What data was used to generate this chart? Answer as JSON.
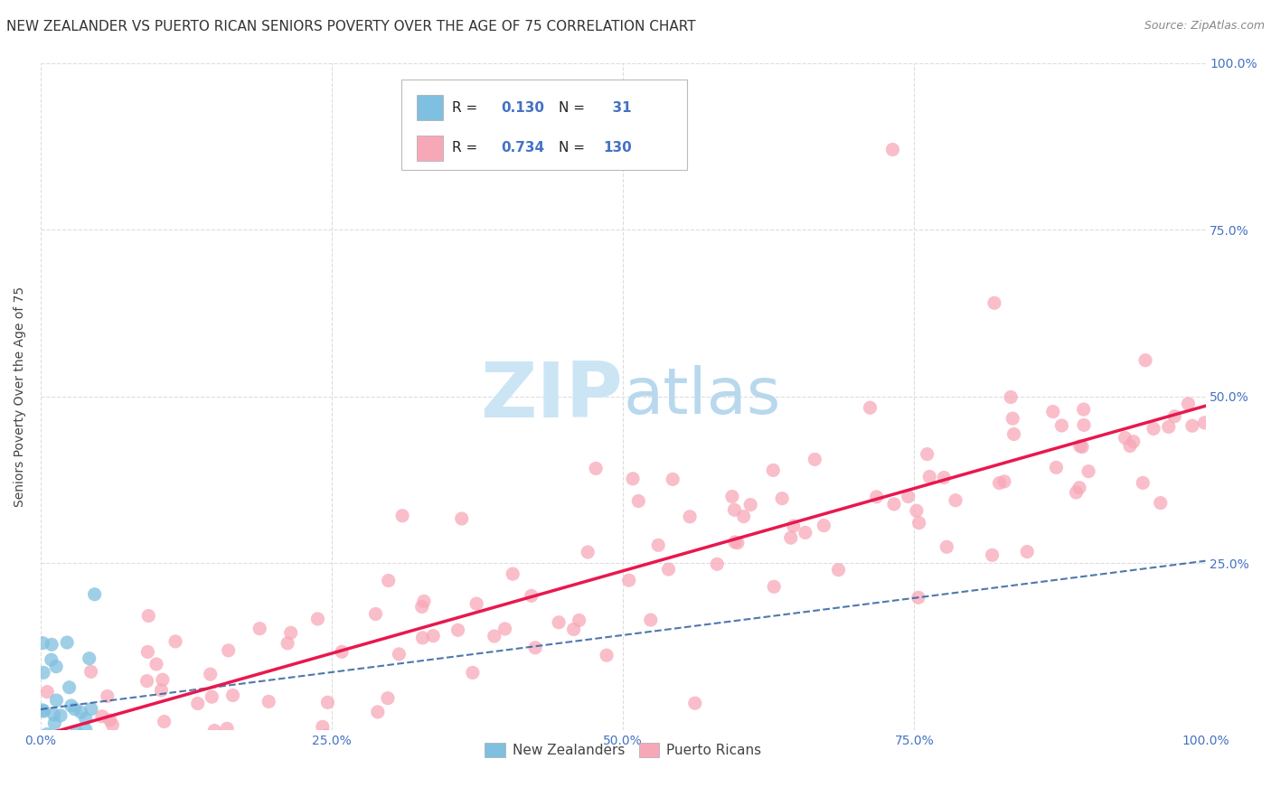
{
  "title": "NEW ZEALANDER VS PUERTO RICAN SENIORS POVERTY OVER THE AGE OF 75 CORRELATION CHART",
  "source": "Source: ZipAtlas.com",
  "ylabel": "Seniors Poverty Over the Age of 75",
  "legend_nz": "New Zealanders",
  "legend_pr": "Puerto Ricans",
  "r_nz": 0.13,
  "n_nz": 31,
  "r_pr": 0.734,
  "n_pr": 130,
  "nz_color": "#7fbfdf",
  "pr_color": "#f7a8b8",
  "nz_line_color": "#3060a0",
  "pr_line_color": "#e8184e",
  "background_color": "#ffffff",
  "title_fontsize": 11,
  "axis_label_fontsize": 10,
  "tick_fontsize": 10,
  "watermark_color": "#cce5f5",
  "grid_color": "#dddddd",
  "tick_color": "#4472c4",
  "legend_text_color": "#222222",
  "source_color": "#888888",
  "ylabel_color": "#444444"
}
